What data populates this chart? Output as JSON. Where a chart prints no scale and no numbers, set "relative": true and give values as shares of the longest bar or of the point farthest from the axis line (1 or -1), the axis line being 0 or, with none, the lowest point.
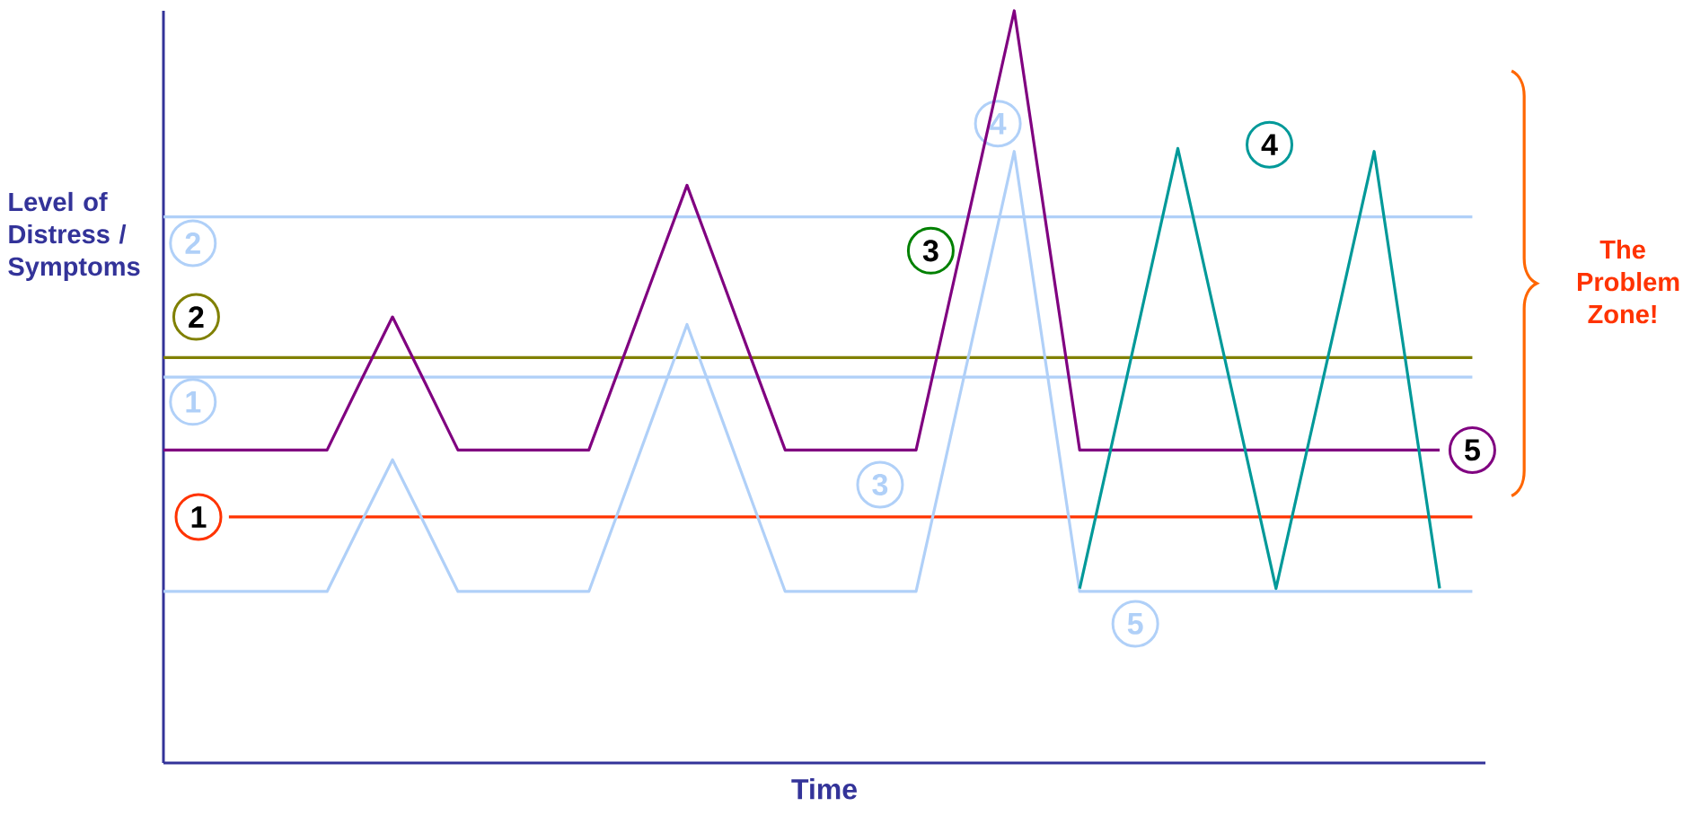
{
  "chart_data": {
    "type": "line",
    "relative": true,
    "xlabel": "Time",
    "ylabel": "Level of Distress / Symptoms",
    "line_style": "solid",
    "categories": [
      null,
      null,
      null,
      null,
      null,
      null,
      null,
      null,
      null,
      null,
      null,
      null,
      null,
      null,
      null,
      null,
      null,
      null,
      null,
      null,
      null,
      null,
      null,
      null,
      null,
      null,
      null,
      null,
      null,
      null,
      null,
      null,
      null,
      null,
      null,
      null,
      null,
      null,
      null,
      null,
      null
    ],
    "series": [
      {
        "color": "#b0d0f8",
        "values": [
          0.513,
          0.513,
          0.513,
          0.513,
          0.513,
          0.513,
          0.513,
          0.513,
          0.513,
          0.513,
          0.513,
          0.513,
          0.513,
          0.513,
          0.513,
          0.513,
          0.513,
          0.513,
          0.513,
          0.513,
          0.513,
          0.513,
          0.513,
          0.513,
          0.513,
          0.513,
          0.513,
          0.513,
          0.513,
          0.513,
          0.513,
          0.513,
          0.513,
          0.513,
          0.513,
          0.513,
          0.513,
          0.513,
          0.513,
          0.513,
          0.513
        ]
      },
      {
        "color": "#b0d0f8",
        "values": [
          0.726,
          0.726,
          0.726,
          0.726,
          0.726,
          0.726,
          0.726,
          0.726,
          0.726,
          0.726,
          0.726,
          0.726,
          0.726,
          0.726,
          0.726,
          0.726,
          0.726,
          0.726,
          0.726,
          0.726,
          0.726,
          0.726,
          0.726,
          0.726,
          0.726,
          0.726,
          0.726,
          0.726,
          0.726,
          0.726,
          0.726,
          0.726,
          0.726,
          0.726,
          0.726,
          0.726,
          0.726,
          0.726,
          0.726,
          0.726,
          0.726
        ]
      },
      {
        "color": "#808000",
        "values": [
          0.539,
          0.539,
          0.539,
          0.539,
          0.539,
          0.539,
          0.539,
          0.539,
          0.539,
          0.539,
          0.539,
          0.539,
          0.539,
          0.539,
          0.539,
          0.539,
          0.539,
          0.539,
          0.539,
          0.539,
          0.539,
          0.539,
          0.539,
          0.539,
          0.539,
          0.539,
          0.539,
          0.539,
          0.539,
          0.539,
          0.539,
          0.539,
          0.539,
          0.539,
          0.539,
          0.539,
          0.539,
          0.539,
          0.539,
          0.539,
          0.539
        ]
      },
      {
        "color": "#ff3300",
        "values": [
          null,
          null,
          0.327,
          0.327,
          0.327,
          0.327,
          0.327,
          0.327,
          0.327,
          0.327,
          0.327,
          0.327,
          0.327,
          0.327,
          0.327,
          0.327,
          0.327,
          0.327,
          0.327,
          0.327,
          0.327,
          0.327,
          0.327,
          0.327,
          0.327,
          0.327,
          0.327,
          0.327,
          0.327,
          0.327,
          0.327,
          0.327,
          0.327,
          0.327,
          0.327,
          0.327,
          0.327,
          0.327,
          0.327,
          0.327,
          0.327
        ]
      },
      {
        "color": "#b0d0f8",
        "values": [
          0.228,
          0.228,
          0.228,
          0.228,
          0.228,
          0.228,
          0.316,
          0.403,
          0.316,
          0.228,
          0.228,
          0.228,
          0.228,
          0.228,
          0.346,
          0.465,
          0.583,
          0.465,
          0.346,
          0.228,
          0.228,
          0.228,
          0.228,
          0.228,
          0.423,
          0.618,
          0.813,
          0.521,
          0.228,
          0.228,
          0.228,
          0.228,
          0.228,
          0.228,
          0.228,
          0.228,
          0.228,
          0.228,
          0.228,
          0.228,
          0.228
        ]
      },
      {
        "color": "#800080",
        "values": [
          0.416,
          0.416,
          0.416,
          0.416,
          0.416,
          0.416,
          0.505,
          0.593,
          0.505,
          0.416,
          0.416,
          0.416,
          0.416,
          0.416,
          0.533,
          0.651,
          0.768,
          0.651,
          0.533,
          0.416,
          0.416,
          0.416,
          0.416,
          0.416,
          0.611,
          0.805,
          1.0,
          0.708,
          0.416,
          0.416,
          0.416,
          0.416,
          0.416,
          0.416,
          0.416,
          0.416,
          0.416,
          0.416,
          0.416,
          0.416,
          null
        ]
      },
      {
        "color": "#009999",
        "values": [
          null,
          null,
          null,
          null,
          null,
          null,
          null,
          null,
          null,
          null,
          null,
          null,
          null,
          null,
          null,
          null,
          null,
          null,
          null,
          null,
          null,
          null,
          null,
          null,
          null,
          null,
          null,
          null,
          0.232,
          0.427,
          0.622,
          0.817,
          0.622,
          0.427,
          0.232,
          0.426,
          0.619,
          0.813,
          0.523,
          0.232,
          null
        ]
      }
    ],
    "annotations": [
      "1",
      "2",
      "3",
      "4",
      "5",
      "1",
      "2",
      "3",
      "4",
      "5",
      "The Problem Zone!"
    ]
  }
}
